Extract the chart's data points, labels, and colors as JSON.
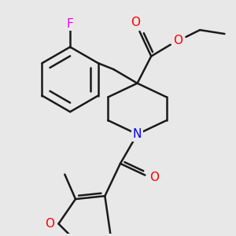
{
  "bg_color": "#e8e8e8",
  "atom_colors": {
    "F": "#ee00ee",
    "O": "#ff0000",
    "N": "#0000ff",
    "C": "#1a1a1a"
  },
  "line_color": "#1a1a1a",
  "line_width": 1.8,
  "figsize": [
    3.0,
    3.0
  ],
  "dpi": 100
}
